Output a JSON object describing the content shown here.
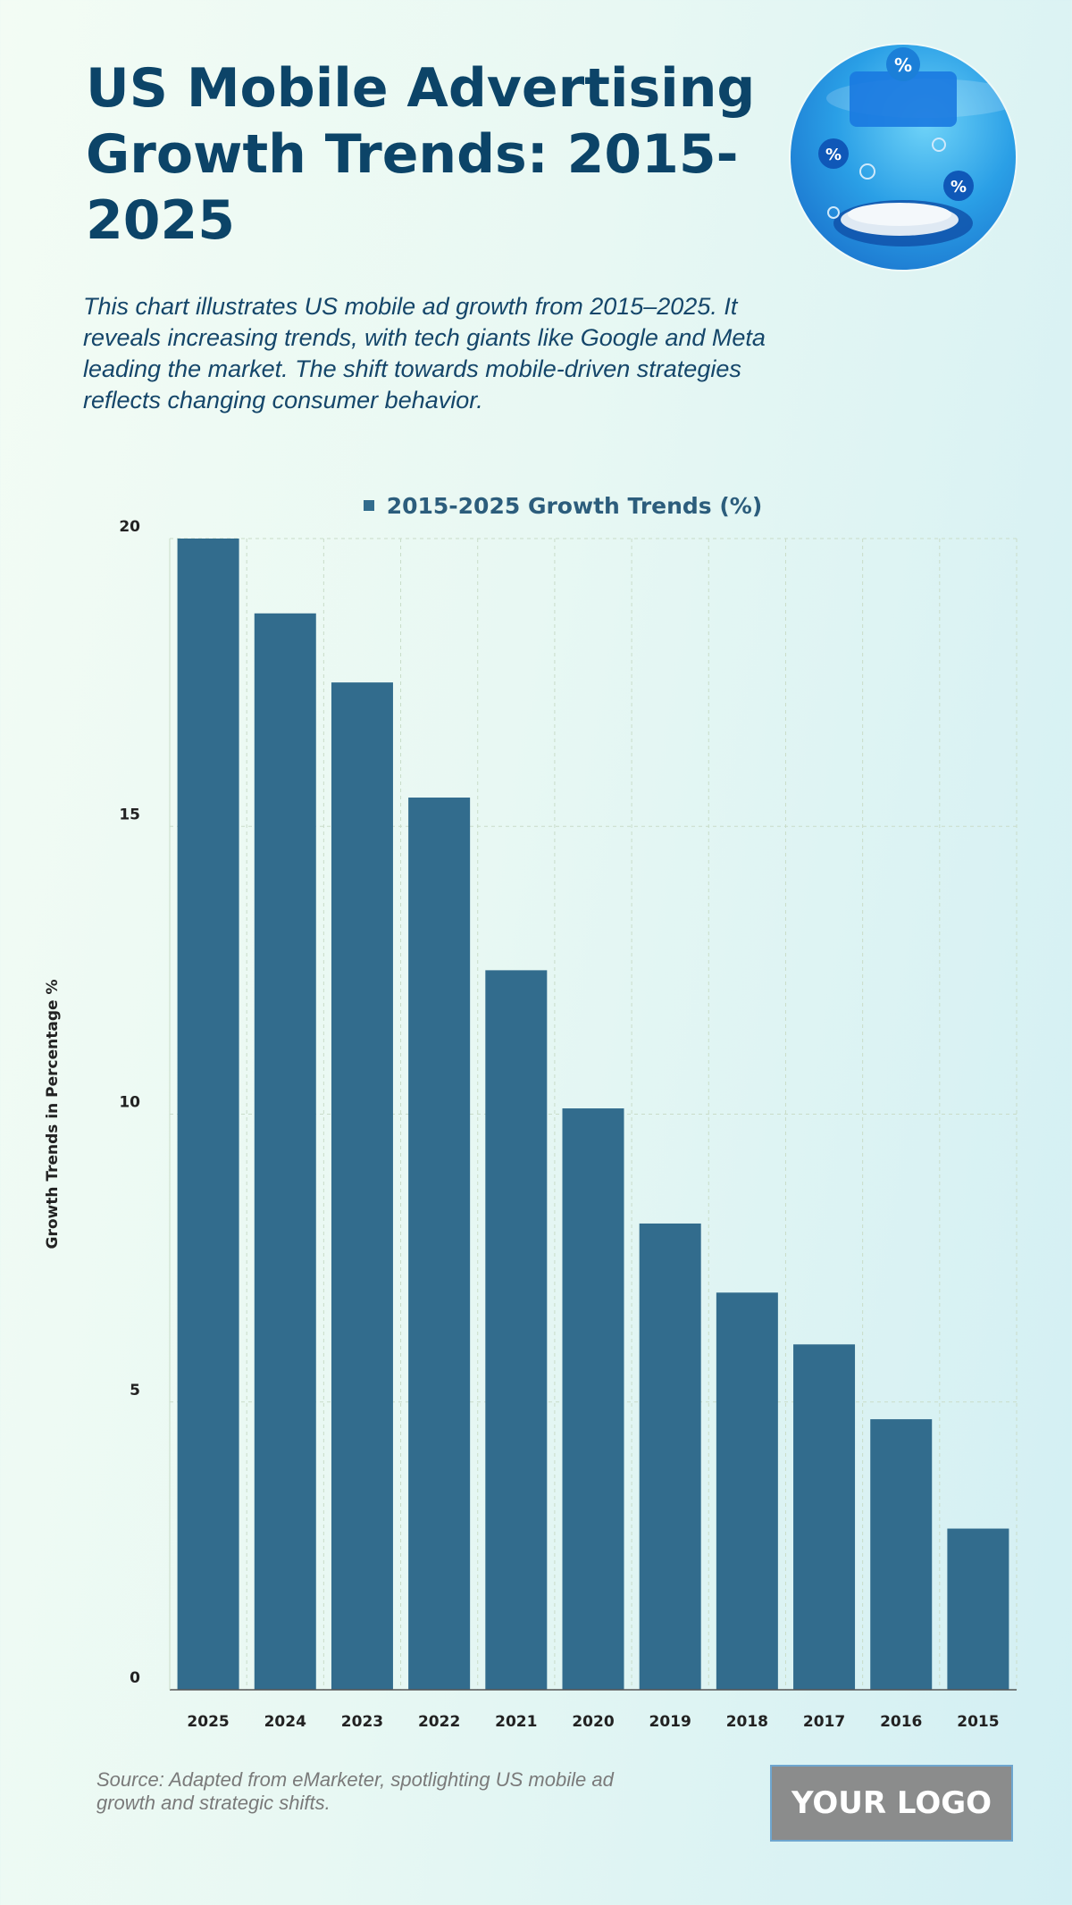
{
  "header": {
    "title": "US Mobile Advertising Growth Trends: 2015-2025",
    "subtitle": "This chart illustrates US mobile ad growth from 2015–2025. It reveals increasing trends, with tech giants like Google and Meta leading the market. The shift towards mobile-driven strategies reflects changing consumer behavior."
  },
  "hero": {
    "icon": "percent-badges-illustration",
    "badge_text": "%"
  },
  "chart_data": {
    "type": "bar",
    "categories": [
      "2025",
      "2024",
      "2023",
      "2022",
      "2021",
      "2020",
      "2019",
      "2018",
      "2017",
      "2016",
      "2015"
    ],
    "series": [
      {
        "name": "2015-2025 Growth Trends (%)",
        "values": [
          20,
          18.7,
          17.5,
          15.5,
          12.5,
          10.1,
          8.1,
          6.9,
          6.0,
          4.7,
          2.8
        ]
      }
    ],
    "title": "",
    "xlabel": "",
    "ylabel": "Growth Trends in Percentage %",
    "ylim": [
      0,
      20
    ],
    "yticks": [
      0,
      5,
      10,
      15,
      20
    ],
    "grid": true,
    "legend": "top-center",
    "colors": {
      "bar": "#326c8d",
      "grid": "#c9dcc9",
      "axis": "#555555"
    }
  },
  "footer": {
    "source": "Source: Adapted from eMarketer, spotlighting US mobile ad growth and strategic shifts.",
    "logo_text": "YOUR LOGO"
  }
}
